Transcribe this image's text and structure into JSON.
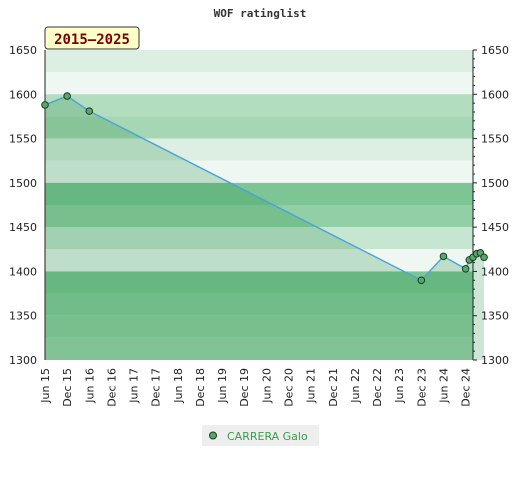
{
  "chart_data": {
    "type": "area",
    "title": "WOF ratinglist",
    "period_badge": "2015–2025",
    "xlabel": "",
    "ylabel": "",
    "ylim": [
      1300,
      1650
    ],
    "y_ticks": [
      1300,
      1350,
      1400,
      1450,
      1500,
      1550,
      1600,
      1650
    ],
    "x_ticks": [
      "Jun 15",
      "Dec 15",
      "Jun 16",
      "Dec 16",
      "Jun 17",
      "Dec 17",
      "Jun 18",
      "Dec 18",
      "Jun 19",
      "Dec 19",
      "Jun 20",
      "Dec 20",
      "Jun 21",
      "Dec 21",
      "Jun 22",
      "Dec 22",
      "Jun 23",
      "Dec 23",
      "Jun 24",
      "Dec 24"
    ],
    "legend_position": "bottom",
    "series": [
      {
        "name": "CARRERA Galo",
        "color": "#4aa3d8",
        "marker_color": "#55a868",
        "points": [
          {
            "x": "2015-06",
            "y": 1588
          },
          {
            "x": "2015-12",
            "y": 1598
          },
          {
            "x": "2016-06",
            "y": 1581
          },
          {
            "x": "2023-12",
            "y": 1390
          },
          {
            "x": "2024-06",
            "y": 1417
          },
          {
            "x": "2024-12",
            "y": 1403
          },
          {
            "x": "2025-01",
            "y": 1413
          },
          {
            "x": "2025-02",
            "y": 1416
          },
          {
            "x": "2025-03",
            "y": 1420
          },
          {
            "x": "2025-04",
            "y": 1421
          },
          {
            "x": "2025-05",
            "y": 1416
          }
        ]
      }
    ]
  }
}
